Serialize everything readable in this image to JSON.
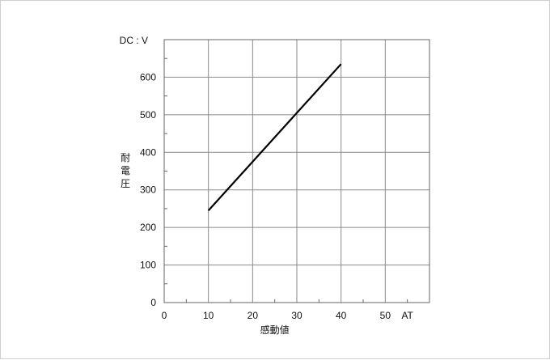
{
  "chart_data": {
    "type": "line",
    "title": "",
    "xlabel": "感動値",
    "ylabel": "耐電圧",
    "x_unit": "AT",
    "y_unit": "DC : V",
    "xlim": [
      0,
      60
    ],
    "ylim": [
      0,
      700
    ],
    "x_ticks": [
      0,
      10,
      20,
      30,
      40,
      50
    ],
    "y_ticks": [
      0,
      100,
      200,
      300,
      400,
      500,
      600
    ],
    "grid": true,
    "series": [
      {
        "x": [
          10,
          40
        ],
        "y": [
          245,
          635
        ],
        "color": "#000000"
      }
    ]
  }
}
